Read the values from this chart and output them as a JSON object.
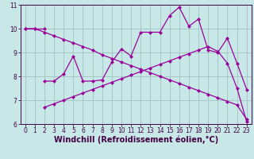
{
  "line_decreasing": {
    "x": [
      0,
      1,
      2,
      3,
      4,
      5,
      6,
      7,
      8,
      9,
      10,
      11,
      12,
      13,
      14,
      15,
      16,
      17,
      18,
      19,
      20,
      21,
      22,
      23
    ],
    "y": [
      10.0,
      10.0,
      9.85,
      9.7,
      9.55,
      9.4,
      9.25,
      9.1,
      8.9,
      8.75,
      8.6,
      8.45,
      8.3,
      8.15,
      8.0,
      7.85,
      7.7,
      7.55,
      7.4,
      7.25,
      7.1,
      6.95,
      6.8,
      6.2
    ]
  },
  "line_increasing": {
    "x": [
      2,
      3,
      4,
      5,
      6,
      7,
      8,
      9,
      10,
      11,
      12,
      13,
      14,
      15,
      16,
      17,
      18,
      19,
      20,
      21,
      22,
      23
    ],
    "y": [
      6.7,
      6.85,
      7.0,
      7.15,
      7.3,
      7.45,
      7.6,
      7.75,
      7.9,
      8.05,
      8.2,
      8.35,
      8.5,
      8.65,
      8.8,
      8.95,
      9.1,
      9.25,
      9.05,
      8.55,
      7.5,
      6.1
    ]
  },
  "line_zigzag": {
    "x": [
      2,
      3,
      4,
      5,
      6,
      7,
      8,
      9,
      10,
      11,
      12,
      13,
      14,
      15,
      16,
      17,
      18,
      19,
      20,
      21,
      22,
      23
    ],
    "y": [
      7.8,
      7.8,
      8.1,
      8.85,
      7.8,
      7.8,
      7.85,
      8.6,
      9.15,
      8.85,
      9.85,
      9.85,
      9.85,
      10.55,
      10.9,
      10.1,
      10.4,
      9.1,
      9.0,
      9.6,
      8.55,
      7.45
    ]
  },
  "line_top": {
    "x": [
      0,
      1,
      2
    ],
    "y": [
      10.0,
      10.0,
      10.0
    ]
  },
  "bgcolor": "#c8e8e8",
  "grid_color": "#a8c8c8",
  "line_color": "#990099",
  "xlabel": "Windchill (Refroidissement éolien,°C)",
  "xlim": [
    0,
    23
  ],
  "ylim": [
    6.0,
    11.0
  ],
  "yticks": [
    6,
    7,
    8,
    9,
    10,
    11
  ],
  "xticks": [
    0,
    1,
    2,
    3,
    4,
    5,
    6,
    7,
    8,
    9,
    10,
    11,
    12,
    13,
    14,
    15,
    16,
    17,
    18,
    19,
    20,
    21,
    22,
    23
  ],
  "tick_fontsize": 5.5,
  "xlabel_fontsize": 7.0
}
